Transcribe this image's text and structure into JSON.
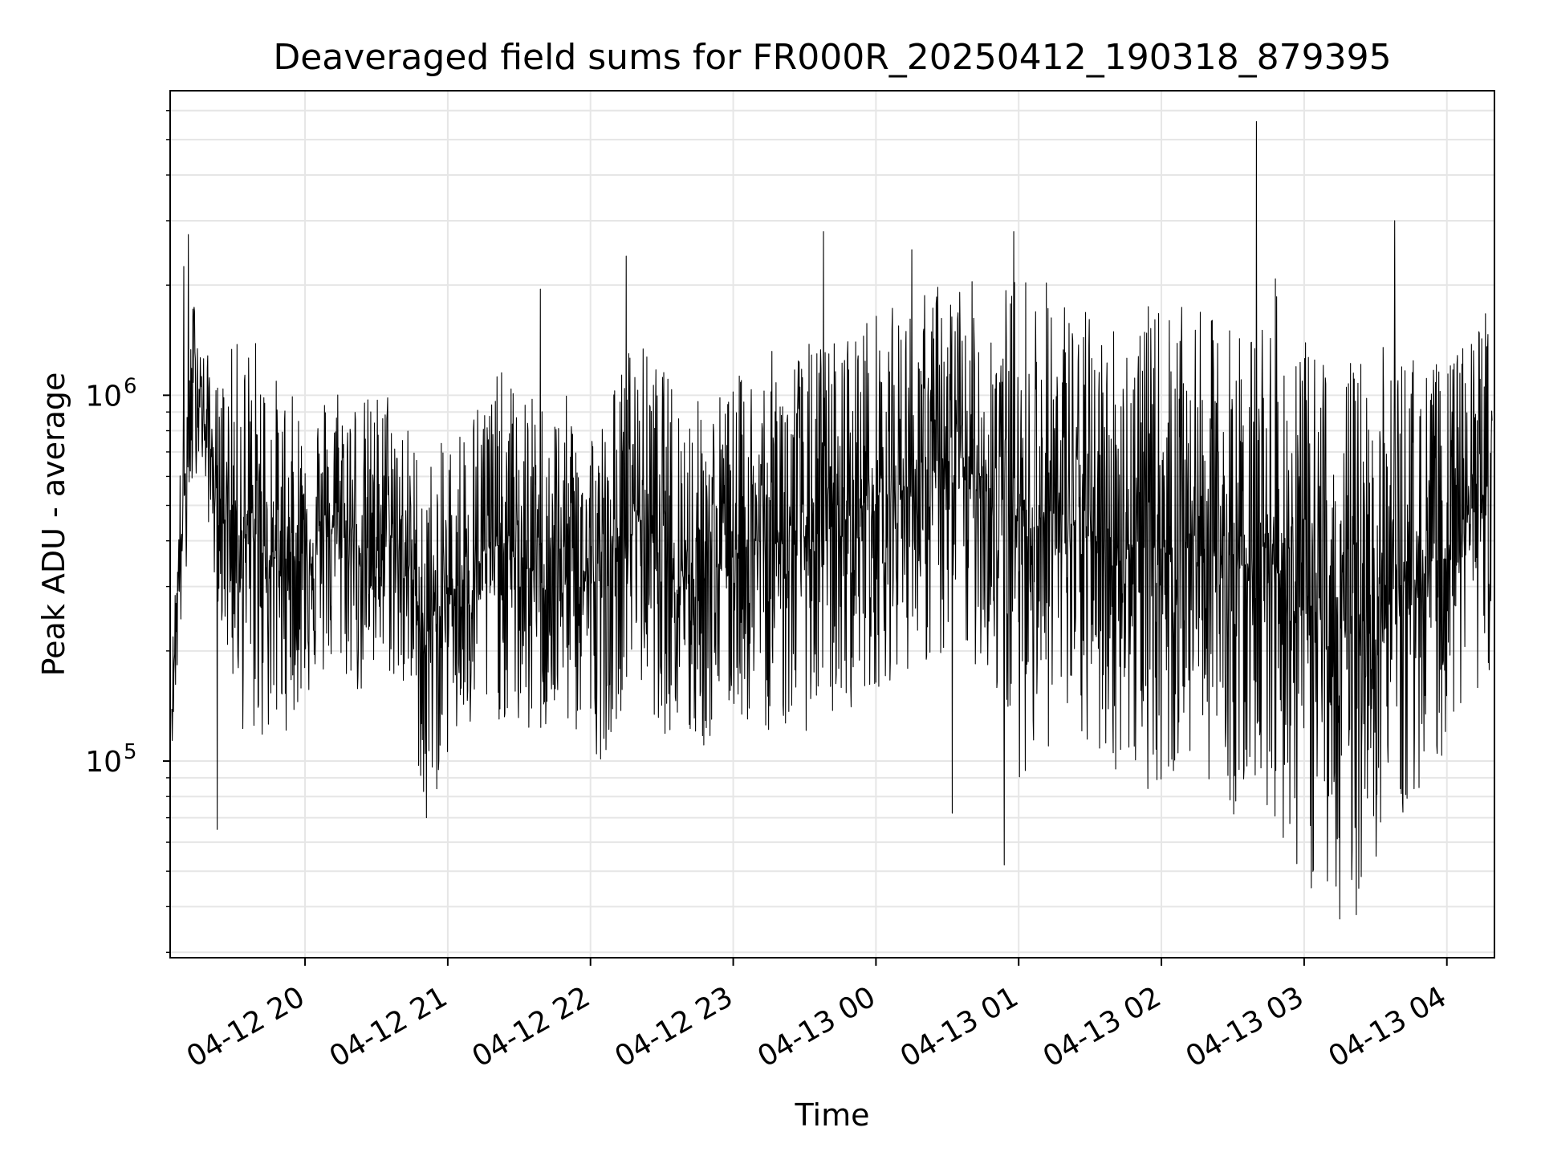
{
  "chart_data": {
    "type": "line",
    "title": "Deaveraged field sums for FR000R_20250412_190318_879395",
    "xlabel": "Time",
    "ylabel": "Peak ADU - average",
    "yscale": "log",
    "ylim": [
      29000,
      6800000
    ],
    "xlim": [
      "2025-04-12T19:03:18",
      "2025-04-13T04:20:00"
    ],
    "x_ticks": [
      {
        "value": "2025-04-12T20:00:00",
        "label": "04-12 20"
      },
      {
        "value": "2025-04-12T21:00:00",
        "label": "04-12 21"
      },
      {
        "value": "2025-04-12T22:00:00",
        "label": "04-12 22"
      },
      {
        "value": "2025-04-12T23:00:00",
        "label": "04-12 23"
      },
      {
        "value": "2025-04-13T00:00:00",
        "label": "04-13 00"
      },
      {
        "value": "2025-04-13T01:00:00",
        "label": "04-13 01"
      },
      {
        "value": "2025-04-13T02:00:00",
        "label": "04-13 02"
      },
      {
        "value": "2025-04-13T03:00:00",
        "label": "04-13 03"
      },
      {
        "value": "2025-04-13T04:00:00",
        "label": "04-13 04"
      }
    ],
    "y_ticks": [
      {
        "value": 100000,
        "base": "10",
        "exp": "5"
      },
      {
        "value": 1000000,
        "base": "10",
        "exp": "6"
      }
    ],
    "grid": true,
    "series": [
      {
        "color": "#000000",
        "x": [
          "2025-04-12T19:04:00",
          "2025-04-12T19:07:00",
          "2025-04-12T19:10:00",
          "2025-04-12T19:12:00",
          "2025-04-12T19:14:00",
          "2025-04-12T19:16:00",
          "2025-04-12T19:18:00",
          "2025-04-12T19:20:00",
          "2025-04-12T19:22:00",
          "2025-04-12T19:24:00",
          "2025-04-12T19:26:00",
          "2025-04-12T19:30:00",
          "2025-04-12T19:35:00",
          "2025-04-12T19:40:00",
          "2025-04-12T19:45:00",
          "2025-04-12T19:50:00",
          "2025-04-12T19:55:00",
          "2025-04-12T20:05:00",
          "2025-04-12T20:15:00",
          "2025-04-12T20:25:00",
          "2025-04-12T20:35:00",
          "2025-04-12T20:45:00",
          "2025-04-12T20:50:00",
          "2025-04-12T20:55:00",
          "2025-04-12T21:00:00",
          "2025-04-12T21:10:00",
          "2025-04-12T21:20:00",
          "2025-04-12T21:35:00",
          "2025-04-12T21:50:00",
          "2025-04-12T22:05:00",
          "2025-04-12T22:18:00",
          "2025-04-12T22:30:00",
          "2025-04-12T22:45:00",
          "2025-04-12T23:00:00",
          "2025-04-12T23:10:00",
          "2025-04-12T23:30:00",
          "2025-04-12T23:45:00",
          "2025-04-12T23:55:00",
          "2025-04-13T00:15:00",
          "2025-04-13T00:30:00",
          "2025-04-13T00:45:00",
          "2025-04-13T00:53:00",
          "2025-04-13T01:00:00",
          "2025-04-13T01:15:00",
          "2025-04-13T01:30:00",
          "2025-04-13T01:45:00",
          "2025-04-13T02:00:00",
          "2025-04-13T02:15:00",
          "2025-04-13T02:30:00",
          "2025-04-13T02:40:00",
          "2025-04-13T02:47:00",
          "2025-04-13T02:55:00",
          "2025-04-13T03:05:00",
          "2025-04-13T03:13:00",
          "2025-04-13T03:20:00",
          "2025-04-13T03:35:00",
          "2025-04-13T03:50:00",
          "2025-04-13T04:00:00",
          "2025-04-13T04:10:00",
          "2025-04-13T04:19:00"
        ],
        "y_lo": [
          110000,
          190000,
          280000,
          500000,
          600000,
          700000,
          500000,
          420000,
          300000,
          260000,
          200000,
          150000,
          110000,
          110000,
          110000,
          115000,
          130000,
          160000,
          170000,
          140000,
          170000,
          130000,
          70000,
          80000,
          100000,
          110000,
          130000,
          110000,
          120000,
          100000,
          170000,
          120000,
          100000,
          130000,
          120000,
          120000,
          130000,
          150000,
          180000,
          180000,
          180000,
          130000,
          90000,
          110000,
          100000,
          90000,
          80000,
          100000,
          70000,
          80000,
          70000,
          50000,
          45000,
          45000,
          40000,
          60000,
          80000,
          110000,
          150000,
          170000
        ],
        "y_hi": [
          190000,
          600000,
          1300000,
          1600000,
          2200000,
          1500000,
          1300000,
          1300000,
          1100000,
          1100000,
          1200000,
          1400000,
          1500000,
          1500000,
          1200000,
          1100000,
          1000000,
          1000000,
          1200000,
          1000000,
          1100000,
          800000,
          700000,
          700000,
          800000,
          1000000,
          1200000,
          1000000,
          1000000,
          900000,
          1500000,
          1200000,
          1000000,
          1100000,
          1300000,
          1400000,
          1500000,
          1700000,
          1800000,
          2200000,
          2000000,
          2000000,
          2300000,
          2100000,
          1700000,
          1700000,
          1800000,
          1700000,
          1600000,
          1700000,
          2200000,
          1400000,
          1400000,
          1300000,
          1300000,
          1400000,
          1300000,
          1200000,
          1500000,
          2000000
        ],
        "peaks": [
          {
            "x": "2025-04-12T19:09:00",
            "y": 2250000
          },
          {
            "x": "2025-04-12T19:11:00",
            "y": 2750000
          },
          {
            "x": "2025-04-12T19:23:00",
            "y": 65000
          },
          {
            "x": "2025-04-12T20:51:00",
            "y": 70000
          },
          {
            "x": "2025-04-12T21:39:00",
            "y": 1950000
          },
          {
            "x": "2025-04-12T22:15:00",
            "y": 2400000
          },
          {
            "x": "2025-04-12T23:38:00",
            "y": 2800000
          },
          {
            "x": "2025-04-13T00:15:00",
            "y": 2500000
          },
          {
            "x": "2025-04-13T00:32:00",
            "y": 72000
          },
          {
            "x": "2025-04-13T00:58:00",
            "y": 2800000
          },
          {
            "x": "2025-04-13T00:54:00",
            "y": 52000
          },
          {
            "x": "2025-04-13T02:40:00",
            "y": 5600000
          },
          {
            "x": "2025-04-13T03:03:00",
            "y": 45000
          },
          {
            "x": "2025-04-13T03:22:00",
            "y": 38000
          },
          {
            "x": "2025-04-13T03:15:00",
            "y": 37000
          },
          {
            "x": "2025-04-13T03:38:00",
            "y": 3000000
          }
        ]
      }
    ]
  }
}
